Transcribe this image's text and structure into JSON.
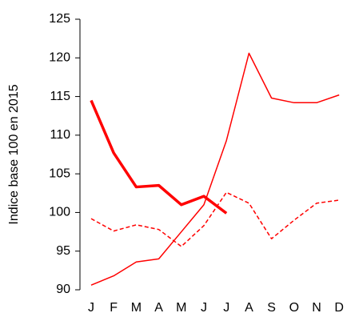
{
  "chart_data": {
    "type": "line",
    "ylabel": "Indice base 100 en 2015",
    "categories": [
      "J",
      "F",
      "M",
      "A",
      "M",
      "J",
      "J",
      "A",
      "S",
      "O",
      "N",
      "D"
    ],
    "series": [
      {
        "color": "#ff0000",
        "width": 3.5,
        "dash": false,
        "values": [
          114.5,
          107.7,
          103.3,
          103.5,
          101.0,
          102.1,
          99.9,
          null,
          null,
          null,
          null,
          null
        ]
      },
      {
        "color": "#ff0000",
        "width": 1.5,
        "dash": false,
        "values": [
          90.6,
          91.8,
          93.6,
          94.0,
          97.5,
          101.0,
          109.3,
          120.6,
          114.8,
          114.2,
          114.2,
          115.2
        ]
      },
      {
        "color": "#ff0000",
        "width": 1.5,
        "dash": true,
        "values": [
          99.2,
          97.6,
          98.4,
          97.8,
          95.6,
          98.3,
          102.6,
          101.2,
          96.6,
          99.0,
          101.2,
          101.6
        ]
      }
    ],
    "ylim": [
      90,
      125
    ],
    "yticks": [
      90,
      95,
      100,
      105,
      110,
      115,
      120,
      125
    ],
    "grid": false
  }
}
